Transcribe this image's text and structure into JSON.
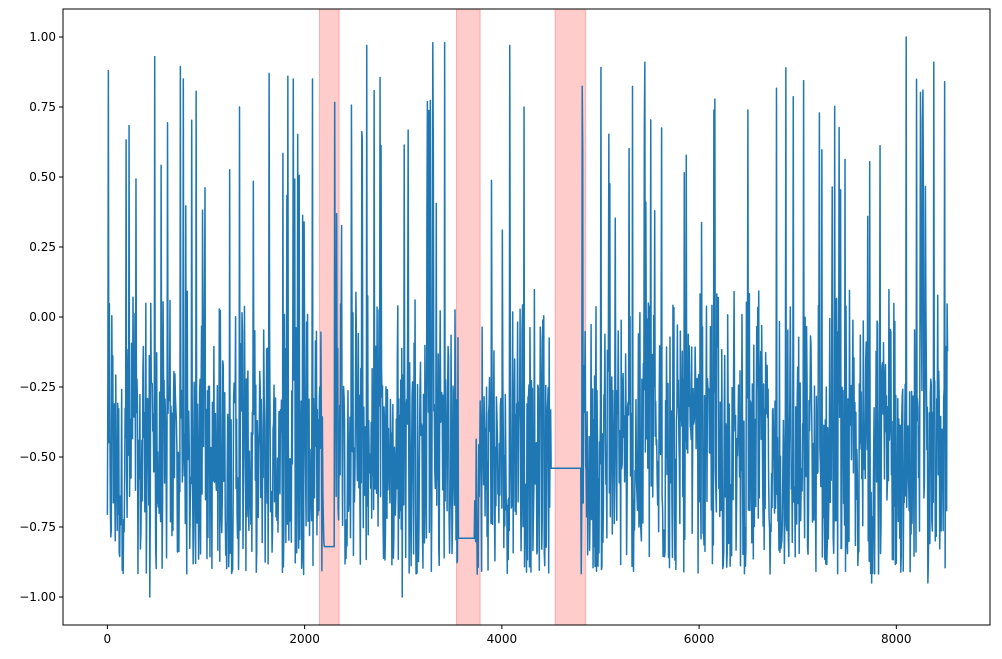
{
  "chart_data": {
    "type": "line",
    "title": "",
    "xlabel": "",
    "ylabel": "",
    "xlim": [
      -450,
      8950
    ],
    "ylim": [
      -1.1,
      1.1
    ],
    "grid": false,
    "x_ticks": [
      0,
      2000,
      4000,
      6000,
      8000
    ],
    "x_tick_labels": [
      "0",
      "2000",
      "4000",
      "6000",
      "8000"
    ],
    "y_ticks": [
      -1.0,
      -0.75,
      -0.5,
      -0.25,
      0.0,
      0.25,
      0.5,
      0.75,
      1.0
    ],
    "y_tick_labels": [
      "−1.00",
      "−0.75",
      "−0.50",
      "−0.25",
      "0.00",
      "0.25",
      "0.50",
      "0.75",
      "1.00"
    ],
    "line_color": "#1f77b4",
    "highlight_color": "#ff0000",
    "highlighted_regions": [
      {
        "x_start": 2150,
        "x_end": 2350
      },
      {
        "x_start": 3540,
        "x_end": 3780
      },
      {
        "x_start": 4540,
        "x_end": 4850
      }
    ],
    "series": [
      {
        "x_range": [
          0,
          8520
        ],
        "n_points": 8520,
        "value_range": [
          -1.0,
          1.0
        ],
        "flat_segments": [
          {
            "x_start": 2200,
            "x_end": 2300,
            "y": -0.82
          },
          {
            "x_start": 3560,
            "x_end": 3720,
            "y": -0.79
          },
          {
            "x_start": 4500,
            "x_end": 4800,
            "y": -0.54
          }
        ],
        "peaks": [
          {
            "x": 10,
            "y": 0.88
          },
          {
            "x": 480,
            "y": 0.93
          },
          {
            "x": 770,
            "y": 0.85
          },
          {
            "x": 1340,
            "y": 0.75
          },
          {
            "x": 1640,
            "y": 0.87
          },
          {
            "x": 1830,
            "y": 0.86
          },
          {
            "x": 2080,
            "y": 0.85
          },
          {
            "x": 2630,
            "y": 0.97
          },
          {
            "x": 3300,
            "y": 0.98
          },
          {
            "x": 3420,
            "y": 0.98
          },
          {
            "x": 4080,
            "y": 0.97
          },
          {
            "x": 4760,
            "y": 0.87
          },
          {
            "x": 5450,
            "y": 0.91
          },
          {
            "x": 6880,
            "y": 0.89
          },
          {
            "x": 8100,
            "y": 1.0
          },
          {
            "x": 8380,
            "y": 0.91
          },
          {
            "x": 8490,
            "y": 0.84
          }
        ],
        "troughs": [
          {
            "x": 430,
            "y": -1.0
          },
          {
            "x": 2990,
            "y": -1.0
          },
          {
            "x": 7750,
            "y": -0.95
          },
          {
            "x": 8320,
            "y": -0.95
          }
        ]
      }
    ]
  }
}
